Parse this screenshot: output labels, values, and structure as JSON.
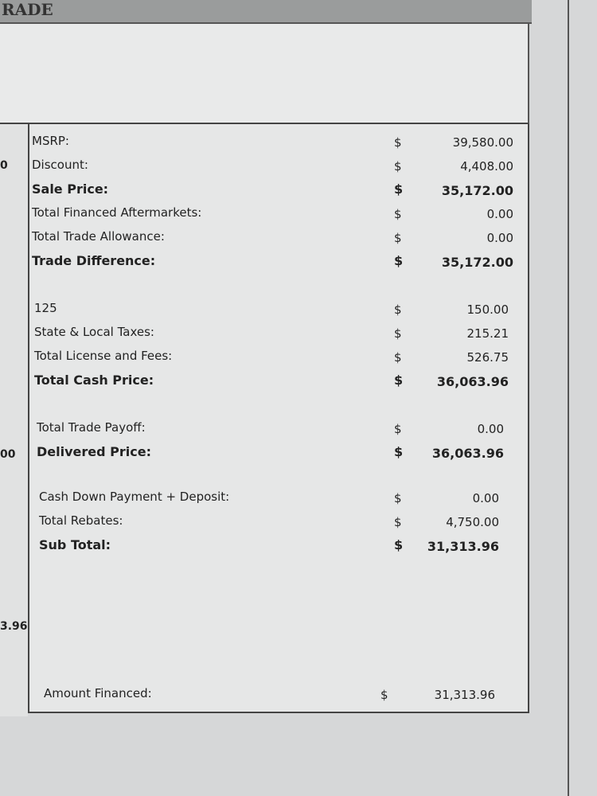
{
  "header": {
    "title": "RADE"
  },
  "left_column": [
    "0",
    "00",
    "3.96"
  ],
  "sections": [
    {
      "rows": [
        {
          "label": "MSRP:",
          "currency": "$",
          "amount": "39,580.00",
          "bold": false
        },
        {
          "label": "Discount:",
          "currency": "$",
          "amount": "4,408.00",
          "bold": false
        },
        {
          "label": "Sale Price:",
          "currency": "$",
          "amount": "35,172.00",
          "bold": true
        },
        {
          "label": "Total Financed Aftermarkets:",
          "currency": "$",
          "amount": "0.00",
          "bold": false
        },
        {
          "label": "Total Trade Allowance:",
          "currency": "$",
          "amount": "0.00",
          "bold": false
        },
        {
          "label": "Trade Difference:",
          "currency": "$",
          "amount": "35,172.00",
          "bold": true
        }
      ]
    },
    {
      "rows": [
        {
          "label": "125",
          "currency": "$",
          "amount": "150.00",
          "bold": false
        },
        {
          "label": "State & Local Taxes:",
          "currency": "$",
          "amount": "215.21",
          "bold": false
        },
        {
          "label": "Total License and Fees:",
          "currency": "$",
          "amount": "526.75",
          "bold": false
        },
        {
          "label": "Total Cash Price:",
          "currency": "$",
          "amount": "36,063.96",
          "bold": true
        }
      ]
    },
    {
      "rows": [
        {
          "label": "Total Trade Payoff:",
          "currency": "$",
          "amount": "0.00",
          "bold": false
        },
        {
          "label": "Delivered Price:",
          "currency": "$",
          "amount": "36,063.96",
          "bold": true
        }
      ]
    },
    {
      "rows": [
        {
          "label": "Cash Down Payment + Deposit:",
          "currency": "$",
          "amount": "0.00",
          "bold": false
        },
        {
          "label": "Total Rebates:",
          "currency": "$",
          "amount": "4,750.00",
          "bold": false
        },
        {
          "label": "Sub Total:",
          "currency": "$",
          "amount": "31,313.96",
          "bold": true
        }
      ]
    }
  ],
  "footer": {
    "label": "Amount Financed:",
    "currency": "$",
    "amount": "31,313.96"
  }
}
